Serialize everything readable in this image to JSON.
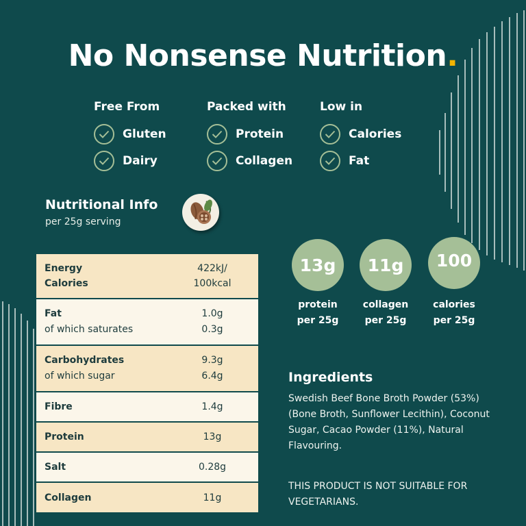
{
  "title": "No Nonsense Nutrition",
  "title_dot": ".",
  "features": [
    {
      "heading": "Free From",
      "items": [
        "Gluten",
        "Dairy"
      ]
    },
    {
      "heading": "Packed with",
      "items": [
        "Protein",
        "Collagen"
      ]
    },
    {
      "heading": "Low in",
      "items": [
        "Calories",
        "Fat"
      ]
    }
  ],
  "nutrition": {
    "title": "Nutritional Info",
    "subtitle": "per 25g serving",
    "rows": [
      {
        "label": "Energy",
        "label2": "Calories",
        "value": "422kJ/",
        "value2": "100kcal"
      },
      {
        "label": "Fat",
        "sub": "of which saturates",
        "value": "1.0g",
        "value2": "0.3g"
      },
      {
        "label": "Carbohydrates",
        "sub": "of which sugar",
        "value": "9.3g",
        "value2": "6.4g"
      },
      {
        "label": "Fibre",
        "value": "1.4g"
      },
      {
        "label": "Protein",
        "value": "13g"
      },
      {
        "label": "Salt",
        "value": "0.28g"
      },
      {
        "label": "Collagen",
        "value": "11g"
      }
    ]
  },
  "highlights": [
    {
      "value": "13g",
      "line1": "protein",
      "line2": "per 25g"
    },
    {
      "value": "11g",
      "line1": "collagen",
      "line2": "per 25g"
    },
    {
      "value": "100",
      "line1": "calories",
      "line2": "per 25g"
    }
  ],
  "ingredients": {
    "title": "Ingredients",
    "text": "Swedish Beef Bone Broth Powder (53%) (Bone Broth, Sunflower Lecithin), Coconut Sugar, Cacao Powder (11%), Natural Flavouring.",
    "warning": "THIS PRODUCT IS NOT SUITABLE FOR VEGETARIANS."
  },
  "colors": {
    "background": "#0f4a4c",
    "accent_green": "#a5bf97",
    "accent_yellow": "#f2b400",
    "cream": "#f7e6c4"
  },
  "icons": [
    "check-icon",
    "cacao-pod-icon"
  ]
}
